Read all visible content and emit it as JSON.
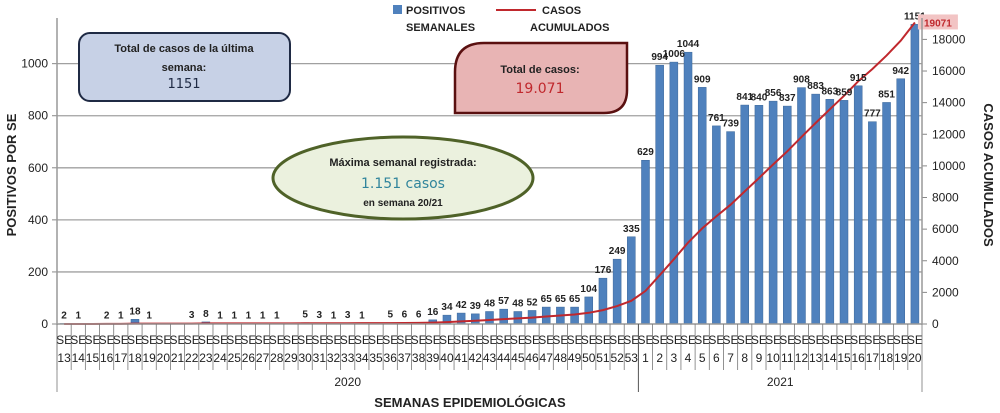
{
  "chart_data": {
    "type": "bar",
    "title": "",
    "xlabel": "SEMANAS EPIDEMIOLÓGICAS",
    "ylabel": "POSITIVOS POR SE",
    "y2label": "CASOS ACUMULADOS",
    "ylim": [
      0,
      1160
    ],
    "y2lim": [
      0,
      19100
    ],
    "yticks": [
      0,
      200,
      400,
      600,
      800,
      1000
    ],
    "y2ticks": [
      0,
      2000,
      4000,
      6000,
      8000,
      10000,
      12000,
      14000,
      16000,
      18000
    ],
    "grid": true,
    "legend_position": "top-center",
    "year_groups": [
      {
        "label": "2020",
        "weeks": [
          13,
          14,
          15,
          16,
          17,
          18,
          19,
          20,
          21,
          22,
          23,
          24,
          25,
          26,
          27,
          28,
          29,
          30,
          31,
          32,
          33,
          34,
          35,
          36,
          37,
          38,
          39,
          40,
          41,
          42,
          43,
          44,
          45,
          46,
          47,
          48,
          49,
          50,
          51,
          52,
          53
        ]
      },
      {
        "label": "2021",
        "weeks": [
          1,
          2,
          3,
          4,
          5,
          6,
          7,
          8,
          9,
          10,
          11,
          12,
          13,
          14,
          15,
          16,
          17,
          18,
          19,
          20
        ]
      }
    ],
    "week_prefix": "SE",
    "series": [
      {
        "name": "POSITIVOS SEMANALES",
        "type": "bar",
        "axis": "left",
        "color": "#4f81bd",
        "values": [
          2,
          1,
          0,
          2,
          1,
          18,
          1,
          0,
          0,
          3,
          8,
          1,
          1,
          1,
          1,
          1,
          0,
          5,
          3,
          1,
          3,
          1,
          0,
          5,
          6,
          6,
          16,
          34,
          42,
          39,
          48,
          57,
          48,
          52,
          65,
          65,
          65,
          104,
          176,
          249,
          335,
          629,
          994,
          1006,
          1044,
          909,
          761,
          739,
          841,
          840,
          856,
          837,
          908,
          883,
          863,
          859,
          915,
          777,
          851,
          942,
          1151
        ]
      },
      {
        "name": "CASOS ACUMULADOS",
        "type": "line",
        "axis": "right",
        "color": "#c0282d",
        "values": [
          2,
          3,
          3,
          5,
          6,
          24,
          25,
          25,
          25,
          28,
          36,
          37,
          38,
          39,
          40,
          41,
          41,
          46,
          49,
          50,
          53,
          54,
          54,
          59,
          65,
          71,
          87,
          121,
          163,
          202,
          250,
          307,
          355,
          407,
          472,
          537,
          602,
          706,
          882,
          1131,
          1466,
          2095,
          3089,
          4095,
          5139,
          6048,
          6809,
          7548,
          8389,
          9229,
          10085,
          10922,
          11830,
          12713,
          13576,
          14435,
          15350,
          16127,
          16978,
          17920,
          19071
        ],
        "last_label": "19071"
      }
    ],
    "legend": [
      {
        "line1": "POSITIVOS",
        "line2": "SEMANALES"
      },
      {
        "line1": "CASOS",
        "line2": "ACUMULADOS"
      }
    ],
    "annotations": {
      "last_week": {
        "line1": "Total de casos de la última",
        "line2": "semana:",
        "value": "1151"
      },
      "total": {
        "label": "Total de casos:",
        "value": "19.071"
      },
      "max": {
        "label": "Máxima semanal registrada:",
        "value": "1.151 casos",
        "sub": "en semana 20/21"
      }
    }
  }
}
